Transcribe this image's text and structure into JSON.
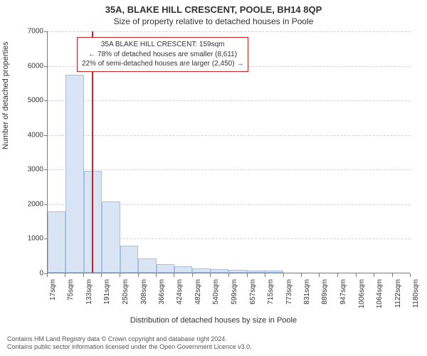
{
  "title_main": "35A, BLAKE HILL CRESCENT, POOLE, BH14 8QP",
  "title_sub": "Size of property relative to detached houses in Poole",
  "y_axis_label": "Number of detached properties",
  "x_axis_label": "Distribution of detached houses by size in Poole",
  "chart": {
    "type": "histogram",
    "background_color": "#ffffff",
    "grid_color": "#d0d0d0",
    "axis_color": "#7a7a7a",
    "bar_fill": "#d9e4f4",
    "bar_border": "#a8bfe0",
    "refline_color": "#d02020",
    "ylim": [
      0,
      7000
    ],
    "ytick_step": 1000,
    "yticks": [
      0,
      1000,
      2000,
      3000,
      4000,
      5000,
      6000,
      7000
    ],
    "x_unit": "sqm",
    "x_start": 17,
    "x_end": 1180,
    "x_tick_step": 58,
    "xticks": [
      17,
      75,
      133,
      191,
      250,
      308,
      366,
      424,
      482,
      540,
      599,
      657,
      715,
      773,
      831,
      889,
      947,
      1006,
      1064,
      1122,
      1180
    ],
    "bar_width_sqm": 58,
    "bars": [
      1780,
      5730,
      2950,
      2050,
      780,
      420,
      250,
      190,
      130,
      100,
      80,
      60,
      60,
      0,
      0,
      0,
      0,
      0,
      0,
      0
    ],
    "reference_value_sqm": 159,
    "tick_fontsize": 10,
    "label_fontsize": 11,
    "title_fontsize_main": 13,
    "title_fontsize_sub": 12
  },
  "annotation": {
    "line1": "35A BLAKE HILL CRESCENT: 159sqm",
    "line2": "← 78% of detached houses are smaller (8,611)",
    "line3": "22% of semi-detached houses are larger (2,450) →",
    "border_color": "#d02020",
    "fontsize": 10
  },
  "footer": {
    "line1": "Contains HM Land Registry data © Crown copyright and database right 2024.",
    "line2": "Contains public sector information licensed under the Open Government Licence v3.0."
  }
}
